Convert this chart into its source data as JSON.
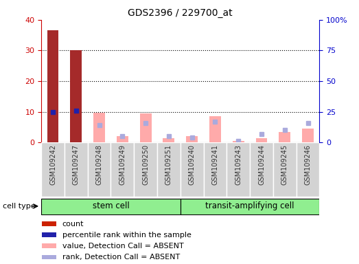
{
  "title": "GDS2396 / 229700_at",
  "samples": [
    "GSM109242",
    "GSM109247",
    "GSM109248",
    "GSM109249",
    "GSM109250",
    "GSM109251",
    "GSM109240",
    "GSM109241",
    "GSM109243",
    "GSM109244",
    "GSM109245",
    "GSM109246"
  ],
  "count": [
    36.5,
    30.0,
    null,
    null,
    null,
    null,
    null,
    null,
    null,
    null,
    null,
    null
  ],
  "percentile_rank": [
    25.0,
    26.0,
    null,
    null,
    null,
    null,
    null,
    null,
    null,
    null,
    null,
    null
  ],
  "value_absent": [
    null,
    null,
    9.8,
    2.0,
    9.5,
    1.5,
    2.2,
    8.5,
    0.5,
    1.5,
    3.5,
    4.5
  ],
  "rank_absent": [
    null,
    null,
    14.0,
    5.0,
    16.0,
    5.0,
    4.0,
    17.0,
    1.5,
    7.0,
    10.5,
    16.0
  ],
  "ylim_left": [
    0,
    40
  ],
  "ylim_right": [
    0,
    100
  ],
  "yticks_left": [
    0,
    10,
    20,
    30,
    40
  ],
  "yticks_right": [
    0,
    25,
    50,
    75,
    100
  ],
  "yticklabels_right": [
    "0",
    "25",
    "50",
    "75",
    "100%"
  ],
  "color_count": "#a52a2a",
  "color_percentile": "#2020aa",
  "color_value_absent": "#ffaaaa",
  "color_rank_absent": "#aaaadd",
  "color_left_axis": "#cc0000",
  "color_right_axis": "#0000cc",
  "stem_cell_count": 6,
  "transit_cell_count": 6,
  "cell_type_labels": [
    "stem cell",
    "transit-amplifying cell"
  ],
  "legend_items": [
    {
      "color": "#cc2200",
      "label": "count"
    },
    {
      "color": "#2222aa",
      "label": "percentile rank within the sample"
    },
    {
      "color": "#ffaaaa",
      "label": "value, Detection Call = ABSENT"
    },
    {
      "color": "#aaaadd",
      "label": "rank, Detection Call = ABSENT"
    }
  ]
}
